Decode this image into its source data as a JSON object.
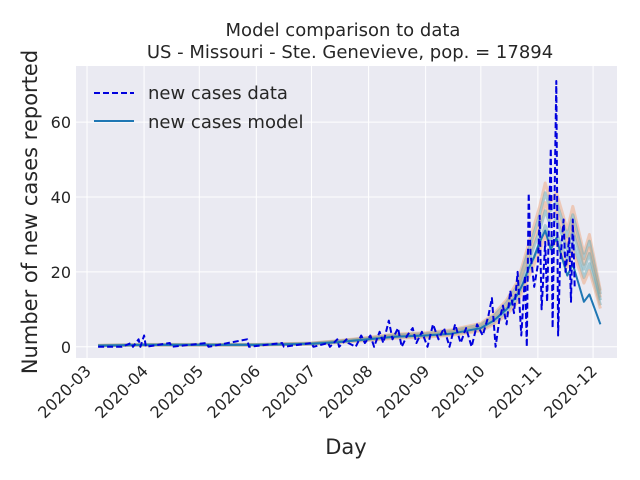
{
  "chart_data": {
    "type": "line",
    "title": "Model comparison to data",
    "subtitle": "US - Missouri - Ste. Genevieve, pop. = 17894",
    "xlabel": "Day",
    "ylabel": "Number of new cases reported",
    "x_ticks": [
      "2020-03",
      "2020-04",
      "2020-05",
      "2020-06",
      "2020-07",
      "2020-08",
      "2020-09",
      "2020-10",
      "2020-11",
      "2020-12"
    ],
    "y_ticks": [
      0,
      20,
      40,
      60
    ],
    "xlim": [
      "2020-02-24",
      "2020-12-14"
    ],
    "ylim": [
      -3,
      75
    ],
    "grid": true,
    "legend_position": "top-left",
    "colors": {
      "background": "#eaeaf2",
      "grid": "#ffffff",
      "data": "#0000dd",
      "model": "#1f77b4",
      "ensemble_a": "#f0a070",
      "ensemble_b": "#5aa0a8"
    },
    "series": [
      {
        "name": "new cases data",
        "style": "dashed",
        "points": [
          [
            "2020-03-07",
            0
          ],
          [
            "2020-03-20",
            0
          ],
          [
            "2020-03-25",
            1
          ],
          [
            "2020-03-26",
            0
          ],
          [
            "2020-03-29",
            2
          ],
          [
            "2020-03-30",
            0
          ],
          [
            "2020-04-01",
            3
          ],
          [
            "2020-04-02",
            0
          ],
          [
            "2020-04-15",
            1
          ],
          [
            "2020-04-16",
            0
          ],
          [
            "2020-05-05",
            1
          ],
          [
            "2020-05-06",
            0
          ],
          [
            "2020-05-27",
            2
          ],
          [
            "2020-05-28",
            0
          ],
          [
            "2020-06-15",
            1
          ],
          [
            "2020-06-16",
            0
          ],
          [
            "2020-07-01",
            1
          ],
          [
            "2020-07-02",
            0
          ],
          [
            "2020-07-10",
            1
          ],
          [
            "2020-07-11",
            0
          ],
          [
            "2020-07-15",
            2
          ],
          [
            "2020-07-16",
            0
          ],
          [
            "2020-07-20",
            2
          ],
          [
            "2020-07-21",
            1
          ],
          [
            "2020-07-25",
            0
          ],
          [
            "2020-07-28",
            3
          ],
          [
            "2020-07-30",
            1
          ],
          [
            "2020-08-02",
            3
          ],
          [
            "2020-08-04",
            0
          ],
          [
            "2020-08-07",
            4
          ],
          [
            "2020-08-09",
            1
          ],
          [
            "2020-08-12",
            7
          ],
          [
            "2020-08-14",
            2
          ],
          [
            "2020-08-17",
            5
          ],
          [
            "2020-08-19",
            0
          ],
          [
            "2020-08-22",
            3
          ],
          [
            "2020-08-25",
            5
          ],
          [
            "2020-08-27",
            1
          ],
          [
            "2020-08-30",
            4
          ],
          [
            "2020-09-02",
            0
          ],
          [
            "2020-09-05",
            6
          ],
          [
            "2020-09-08",
            2
          ],
          [
            "2020-09-11",
            5
          ],
          [
            "2020-09-14",
            0
          ],
          [
            "2020-09-17",
            6
          ],
          [
            "2020-09-20",
            1
          ],
          [
            "2020-09-23",
            5
          ],
          [
            "2020-09-26",
            0
          ],
          [
            "2020-09-29",
            6
          ],
          [
            "2020-10-02",
            3
          ],
          [
            "2020-10-05",
            8
          ],
          [
            "2020-10-07",
            13
          ],
          [
            "2020-10-09",
            0
          ],
          [
            "2020-10-11",
            7
          ],
          [
            "2020-10-13",
            11
          ],
          [
            "2020-10-15",
            6
          ],
          [
            "2020-10-17",
            15
          ],
          [
            "2020-10-19",
            9
          ],
          [
            "2020-10-21",
            20
          ],
          [
            "2020-10-23",
            3
          ],
          [
            "2020-10-25",
            19
          ],
          [
            "2020-10-26",
            0
          ],
          [
            "2020-10-27",
            41
          ],
          [
            "2020-10-28",
            25
          ],
          [
            "2020-10-30",
            16
          ],
          [
            "2020-11-01",
            22
          ],
          [
            "2020-11-02",
            35
          ],
          [
            "2020-11-03",
            10
          ],
          [
            "2020-11-05",
            28
          ],
          [
            "2020-11-06",
            12
          ],
          [
            "2020-11-08",
            53
          ],
          [
            "2020-11-09",
            5
          ],
          [
            "2020-11-11",
            71
          ],
          [
            "2020-11-12",
            3
          ],
          [
            "2020-11-13",
            22
          ],
          [
            "2020-11-15",
            34
          ],
          [
            "2020-11-16",
            20
          ],
          [
            "2020-11-18",
            29
          ],
          [
            "2020-11-19",
            12
          ],
          [
            "2020-11-20",
            34
          ],
          [
            "2020-11-21",
            16
          ]
        ]
      },
      {
        "name": "new cases model",
        "style": "solid",
        "points": [
          [
            "2020-03-07",
            0.3
          ],
          [
            "2020-04-01",
            0.5
          ],
          [
            "2020-05-01",
            0.5
          ],
          [
            "2020-06-01",
            0.5
          ],
          [
            "2020-07-01",
            0.8
          ],
          [
            "2020-07-15",
            1.2
          ],
          [
            "2020-08-01",
            2
          ],
          [
            "2020-08-15",
            2.7
          ],
          [
            "2020-09-01",
            3
          ],
          [
            "2020-09-15",
            3.5
          ],
          [
            "2020-10-01",
            5
          ],
          [
            "2020-10-08",
            7
          ],
          [
            "2020-10-15",
            10
          ],
          [
            "2020-10-21",
            14
          ],
          [
            "2020-10-24",
            17
          ],
          [
            "2020-10-27",
            21
          ],
          [
            "2020-10-30",
            24
          ],
          [
            "2020-11-02",
            28
          ],
          [
            "2020-11-05",
            31
          ],
          [
            "2020-11-08",
            26
          ],
          [
            "2020-11-11",
            29
          ],
          [
            "2020-11-14",
            24
          ],
          [
            "2020-11-17",
            19
          ],
          [
            "2020-11-20",
            22
          ],
          [
            "2020-11-23",
            17
          ],
          [
            "2020-11-26",
            12
          ],
          [
            "2020-11-29",
            14
          ],
          [
            "2020-12-02",
            10
          ],
          [
            "2020-12-05",
            6
          ]
        ]
      }
    ],
    "ensemble": {
      "points": [
        [
          "2020-03-07",
          0.3
        ],
        [
          "2020-04-01",
          0.5
        ],
        [
          "2020-05-01",
          0.5
        ],
        [
          "2020-06-01",
          0.5
        ],
        [
          "2020-07-01",
          0.8
        ],
        [
          "2020-07-15",
          1.3
        ],
        [
          "2020-08-01",
          2
        ],
        [
          "2020-08-15",
          2.7
        ],
        [
          "2020-09-01",
          3
        ],
        [
          "2020-09-15",
          3.6
        ],
        [
          "2020-10-01",
          5
        ],
        [
          "2020-10-08",
          7
        ],
        [
          "2020-10-15",
          10
        ],
        [
          "2020-10-21",
          14
        ],
        [
          "2020-10-24",
          18
        ],
        [
          "2020-10-27",
          22
        ],
        [
          "2020-10-30",
          26
        ],
        [
          "2020-11-02",
          30
        ],
        [
          "2020-11-05",
          35
        ],
        [
          "2020-11-08",
          31
        ],
        [
          "2020-11-11",
          33
        ],
        [
          "2020-11-14",
          29
        ],
        [
          "2020-11-17",
          25
        ],
        [
          "2020-11-20",
          30
        ],
        [
          "2020-11-23",
          25
        ],
        [
          "2020-11-26",
          20
        ],
        [
          "2020-11-29",
          24
        ],
        [
          "2020-12-02",
          18
        ],
        [
          "2020-12-05",
          12
        ]
      ],
      "spread": 0.25
    }
  }
}
